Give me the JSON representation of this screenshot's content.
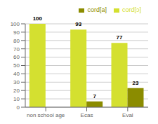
{
  "chart_data": {
    "type": "bar",
    "categories": [
      "non school age",
      "Ecas",
      "Eval"
    ],
    "series": [
      {
        "name": "cord[ɔ]",
        "color": "#d4e030",
        "values": [
          100,
          93,
          77
        ]
      },
      {
        "name": "cord[a]",
        "color": "#8b8c00",
        "values": [
          0,
          7,
          23
        ]
      }
    ],
    "ylim": [
      0,
      100
    ],
    "yticks": [
      0,
      10,
      20,
      30,
      40,
      50,
      60,
      70,
      80,
      90,
      100
    ],
    "grid": true,
    "legend": "upper right",
    "data_labels": true
  }
}
